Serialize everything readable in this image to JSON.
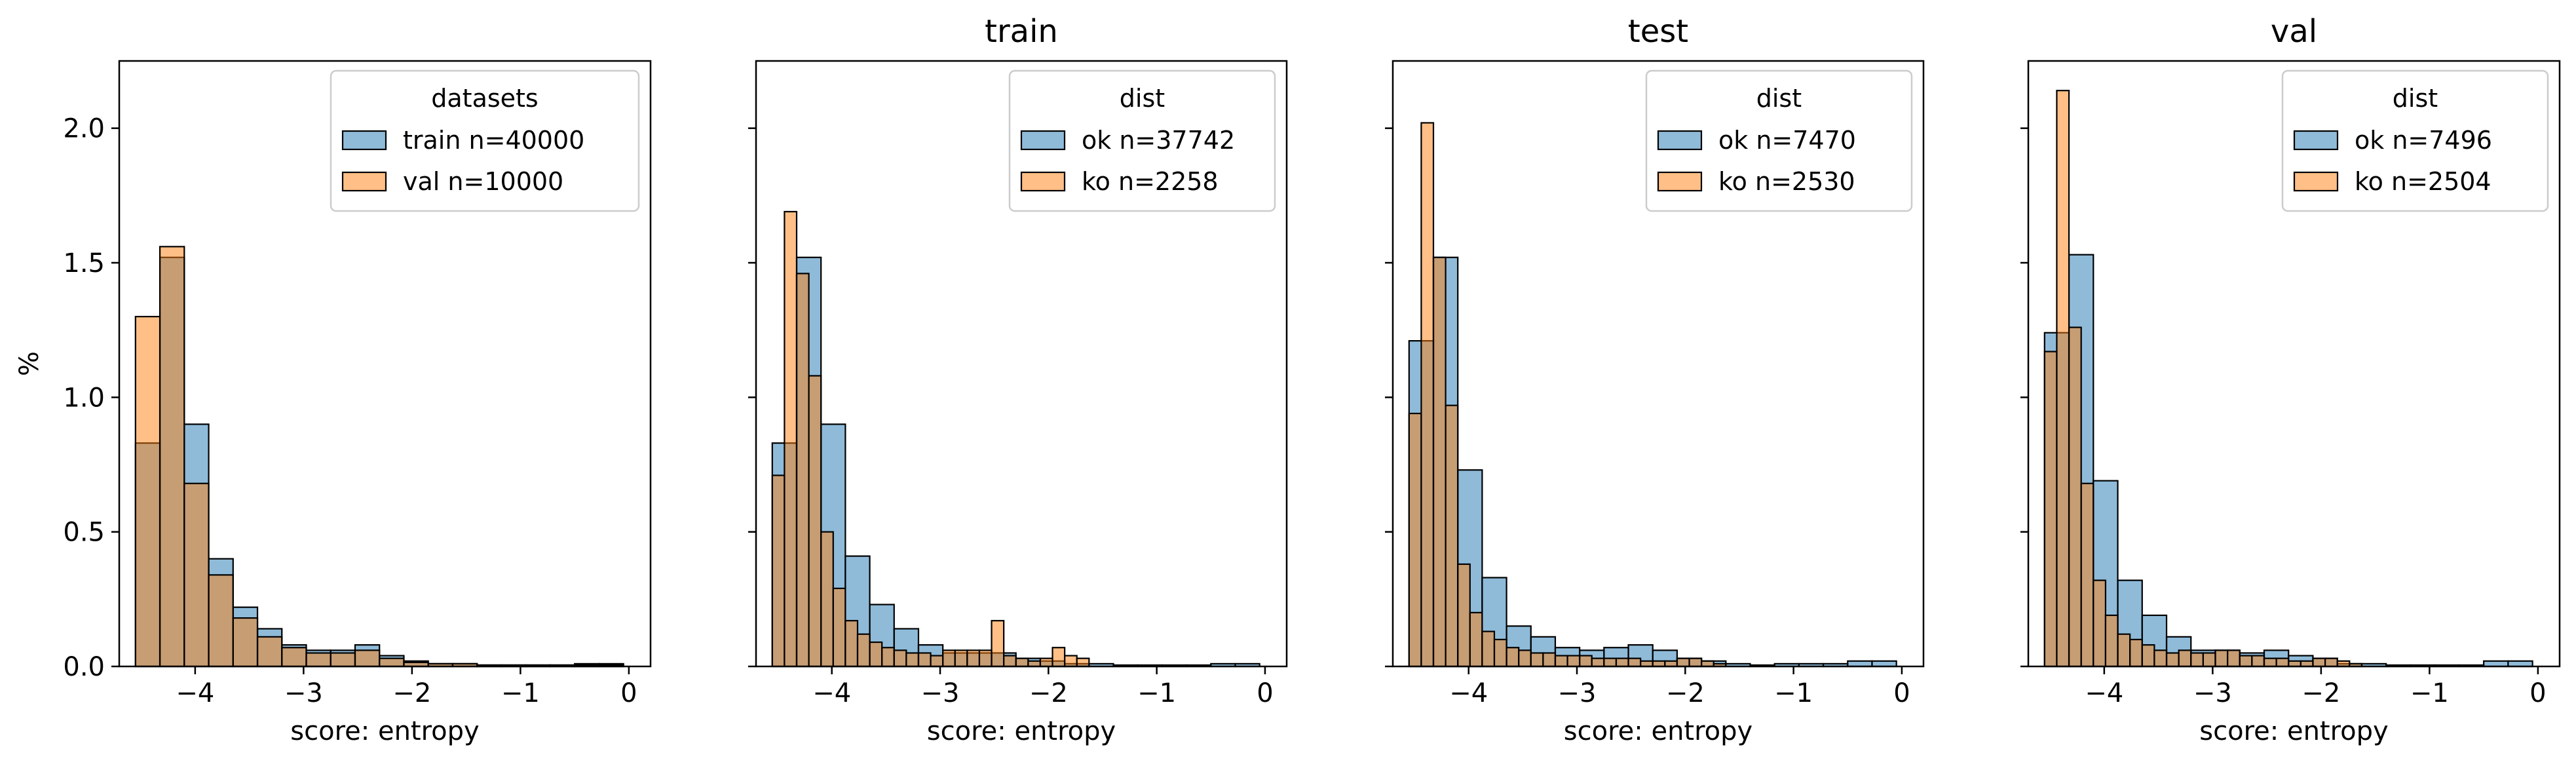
{
  "colors": {
    "blue": "#1f77b4",
    "orange": "#ff7f0e",
    "blue_alpha": 0.5,
    "orange_alpha": 0.5,
    "edge": "#000000"
  },
  "chart_data": [
    {
      "type": "bar",
      "title": "",
      "xlabel": "score: entropy",
      "ylabel": "%",
      "xlim": [
        -4.7,
        0.2
      ],
      "ylim": [
        0,
        2.25
      ],
      "xticks": [
        -4,
        -3,
        -2,
        -1,
        0
      ],
      "yticks": [
        0.0,
        0.5,
        1.0,
        1.5,
        2.0
      ],
      "legend": {
        "title": "datasets",
        "placement": "top-right"
      },
      "grid": false,
      "series": [
        {
          "name": "train n=40000",
          "color": "blue",
          "bins": [
            -4.55,
            -4.325,
            -4.1,
            -3.875,
            -3.65,
            -3.425,
            -3.2,
            -2.975,
            -2.75,
            -2.525,
            -2.3,
            -2.075,
            -1.85,
            -1.625,
            -1.4,
            -1.175,
            -0.95,
            -0.725,
            -0.5,
            -0.275,
            -0.05
          ],
          "values": [
            0.83,
            1.52,
            0.9,
            0.4,
            0.22,
            0.14,
            0.08,
            0.06,
            0.06,
            0.08,
            0.04,
            0.02,
            0.01,
            0.01,
            0.005,
            0.005,
            0.005,
            0.005,
            0.01,
            0.01
          ]
        },
        {
          "name": "val n=10000",
          "color": "orange",
          "bins": [
            -4.55,
            -4.325,
            -4.1,
            -3.875,
            -3.65,
            -3.425,
            -3.2,
            -2.975,
            -2.75,
            -2.525,
            -2.3,
            -2.075,
            -1.85,
            -1.625,
            -1.4,
            -1.175,
            -0.95,
            -0.725,
            -0.5,
            -0.275,
            -0.05
          ],
          "values": [
            1.3,
            1.56,
            0.68,
            0.34,
            0.18,
            0.11,
            0.07,
            0.05,
            0.05,
            0.06,
            0.03,
            0.015,
            0.01,
            0.01,
            0.005,
            0.005,
            0.005,
            0.005,
            0.005,
            0.005
          ]
        }
      ]
    },
    {
      "type": "bar",
      "title": "train",
      "xlabel": "score: entropy",
      "ylabel": "",
      "xlim": [
        -4.7,
        0.2
      ],
      "ylim": [
        0,
        2.25
      ],
      "xticks": [
        -4,
        -3,
        -2,
        -1,
        0
      ],
      "yticks": [
        0.0,
        0.5,
        1.0,
        1.5,
        2.0
      ],
      "legend": {
        "title": "dist",
        "placement": "top-right"
      },
      "grid": false,
      "series": [
        {
          "name": "ok n=37742",
          "color": "blue",
          "bins": [
            -4.55,
            -4.325,
            -4.1,
            -3.875,
            -3.65,
            -3.425,
            -3.2,
            -2.975,
            -2.75,
            -2.525,
            -2.3,
            -2.075,
            -1.85,
            -1.625,
            -1.4,
            -1.175,
            -0.95,
            -0.725,
            -0.5,
            -0.275,
            -0.05
          ],
          "values": [
            0.83,
            1.52,
            0.9,
            0.41,
            0.23,
            0.14,
            0.08,
            0.05,
            0.05,
            0.05,
            0.03,
            0.02,
            0.01,
            0.01,
            0.005,
            0.005,
            0.005,
            0.005,
            0.01,
            0.01
          ]
        },
        {
          "name": "ko n=2258",
          "color": "orange",
          "bins": [
            -4.55,
            -4.4375,
            -4.325,
            -4.2125,
            -4.1,
            -3.9875,
            -3.875,
            -3.7625,
            -3.65,
            -3.5375,
            -3.425,
            -3.3125,
            -3.2,
            -3.0875,
            -2.975,
            -2.8625,
            -2.75,
            -2.6375,
            -2.525,
            -2.4125,
            -2.3,
            -2.1875,
            -2.075,
            -1.9625,
            -1.85,
            -1.7375,
            -1.625
          ],
          "values": [
            0.71,
            1.69,
            1.46,
            1.08,
            0.5,
            0.29,
            0.17,
            0.12,
            0.09,
            0.07,
            0.06,
            0.05,
            0.05,
            0.04,
            0.06,
            0.06,
            0.06,
            0.06,
            0.17,
            0.04,
            0.03,
            0.02,
            0.03,
            0.07,
            0.04,
            0.03
          ]
        }
      ]
    },
    {
      "type": "bar",
      "title": "test",
      "xlabel": "score: entropy",
      "ylabel": "",
      "xlim": [
        -4.7,
        0.2
      ],
      "ylim": [
        0,
        2.25
      ],
      "xticks": [
        -4,
        -3,
        -2,
        -1,
        0
      ],
      "yticks": [
        0.0,
        0.5,
        1.0,
        1.5,
        2.0
      ],
      "legend": {
        "title": "dist",
        "placement": "top-right"
      },
      "grid": false,
      "series": [
        {
          "name": "ok n=7470",
          "color": "blue",
          "bins": [
            -4.55,
            -4.325,
            -4.1,
            -3.875,
            -3.65,
            -3.425,
            -3.2,
            -2.975,
            -2.75,
            -2.525,
            -2.3,
            -2.075,
            -1.85,
            -1.625,
            -1.4,
            -1.175,
            -0.95,
            -0.725,
            -0.5,
            -0.275,
            -0.05
          ],
          "values": [
            1.21,
            1.52,
            0.73,
            0.33,
            0.15,
            0.11,
            0.07,
            0.06,
            0.07,
            0.08,
            0.06,
            0.03,
            0.02,
            0.01,
            0.005,
            0.01,
            0.01,
            0.01,
            0.02,
            0.02
          ]
        },
        {
          "name": "ko n=2530",
          "color": "orange",
          "bins": [
            -4.55,
            -4.4375,
            -4.325,
            -4.2125,
            -4.1,
            -3.9875,
            -3.875,
            -3.7625,
            -3.65,
            -3.5375,
            -3.425,
            -3.3125,
            -3.2,
            -3.0875,
            -2.975,
            -2.8625,
            -2.75,
            -2.6375,
            -2.525,
            -2.4125,
            -2.3,
            -2.1875,
            -2.075,
            -1.9625,
            -1.85,
            -1.7375,
            -1.625
          ],
          "values": [
            0.94,
            2.02,
            1.52,
            0.97,
            0.38,
            0.2,
            0.13,
            0.1,
            0.07,
            0.06,
            0.05,
            0.05,
            0.04,
            0.04,
            0.04,
            0.03,
            0.03,
            0.03,
            0.03,
            0.02,
            0.02,
            0.02,
            0.03,
            0.03,
            0.02,
            0.01
          ]
        }
      ]
    },
    {
      "type": "bar",
      "title": "val",
      "xlabel": "score: entropy",
      "ylabel": "",
      "xlim": [
        -4.7,
        0.2
      ],
      "ylim": [
        0,
        2.25
      ],
      "xticks": [
        -4,
        -3,
        -2,
        -1,
        0
      ],
      "yticks": [
        0.0,
        0.5,
        1.0,
        1.5,
        2.0
      ],
      "legend": {
        "title": "dist",
        "placement": "top-right"
      },
      "grid": false,
      "series": [
        {
          "name": "ok n=7496",
          "color": "blue",
          "bins": [
            -4.55,
            -4.325,
            -4.1,
            -3.875,
            -3.65,
            -3.425,
            -3.2,
            -2.975,
            -2.75,
            -2.525,
            -2.3,
            -2.075,
            -1.85,
            -1.625,
            -1.4,
            -1.175,
            -0.95,
            -0.725,
            -0.5,
            -0.275,
            -0.05
          ],
          "values": [
            1.24,
            1.53,
            0.69,
            0.32,
            0.19,
            0.11,
            0.06,
            0.06,
            0.05,
            0.06,
            0.04,
            0.03,
            0.01,
            0.01,
            0.005,
            0.005,
            0.005,
            0.005,
            0.02,
            0.02
          ]
        },
        {
          "name": "ko n=2504",
          "color": "orange",
          "bins": [
            -4.55,
            -4.4375,
            -4.325,
            -4.2125,
            -4.1,
            -3.9875,
            -3.875,
            -3.7625,
            -3.65,
            -3.5375,
            -3.425,
            -3.3125,
            -3.2,
            -3.0875,
            -2.975,
            -2.8625,
            -2.75,
            -2.6375,
            -2.525,
            -2.4125,
            -2.3,
            -2.1875,
            -2.075,
            -1.9625,
            -1.85,
            -1.7375,
            -1.625
          ],
          "values": [
            1.17,
            2.14,
            1.26,
            0.68,
            0.32,
            0.19,
            0.12,
            0.1,
            0.08,
            0.06,
            0.05,
            0.06,
            0.05,
            0.05,
            0.06,
            0.06,
            0.04,
            0.04,
            0.03,
            0.03,
            0.02,
            0.02,
            0.03,
            0.03,
            0.02,
            0.01
          ]
        }
      ]
    }
  ]
}
